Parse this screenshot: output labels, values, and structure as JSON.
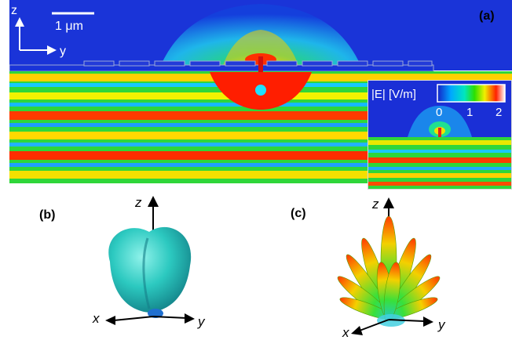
{
  "panel_a": {
    "label": "(a)",
    "scale_bar": "1 μm",
    "axis_z": "z",
    "axis_y": "y",
    "colorbar": {
      "title": "|E| [V/m]",
      "ticks": [
        "0",
        "1",
        "2"
      ],
      "colors": [
        "#1a2fd6",
        "#00d7ff",
        "#22e000",
        "#f4f400",
        "#ff1e00",
        "#ffffff"
      ]
    }
  },
  "panel_b": {
    "label": "(b)",
    "axis_x": "x",
    "axis_y": "y",
    "axis_z": "z",
    "color": "#2cc9c0"
  },
  "panel_c": {
    "label": "(c)",
    "axis_x": "x",
    "axis_y": "y",
    "axis_z": "z"
  }
}
